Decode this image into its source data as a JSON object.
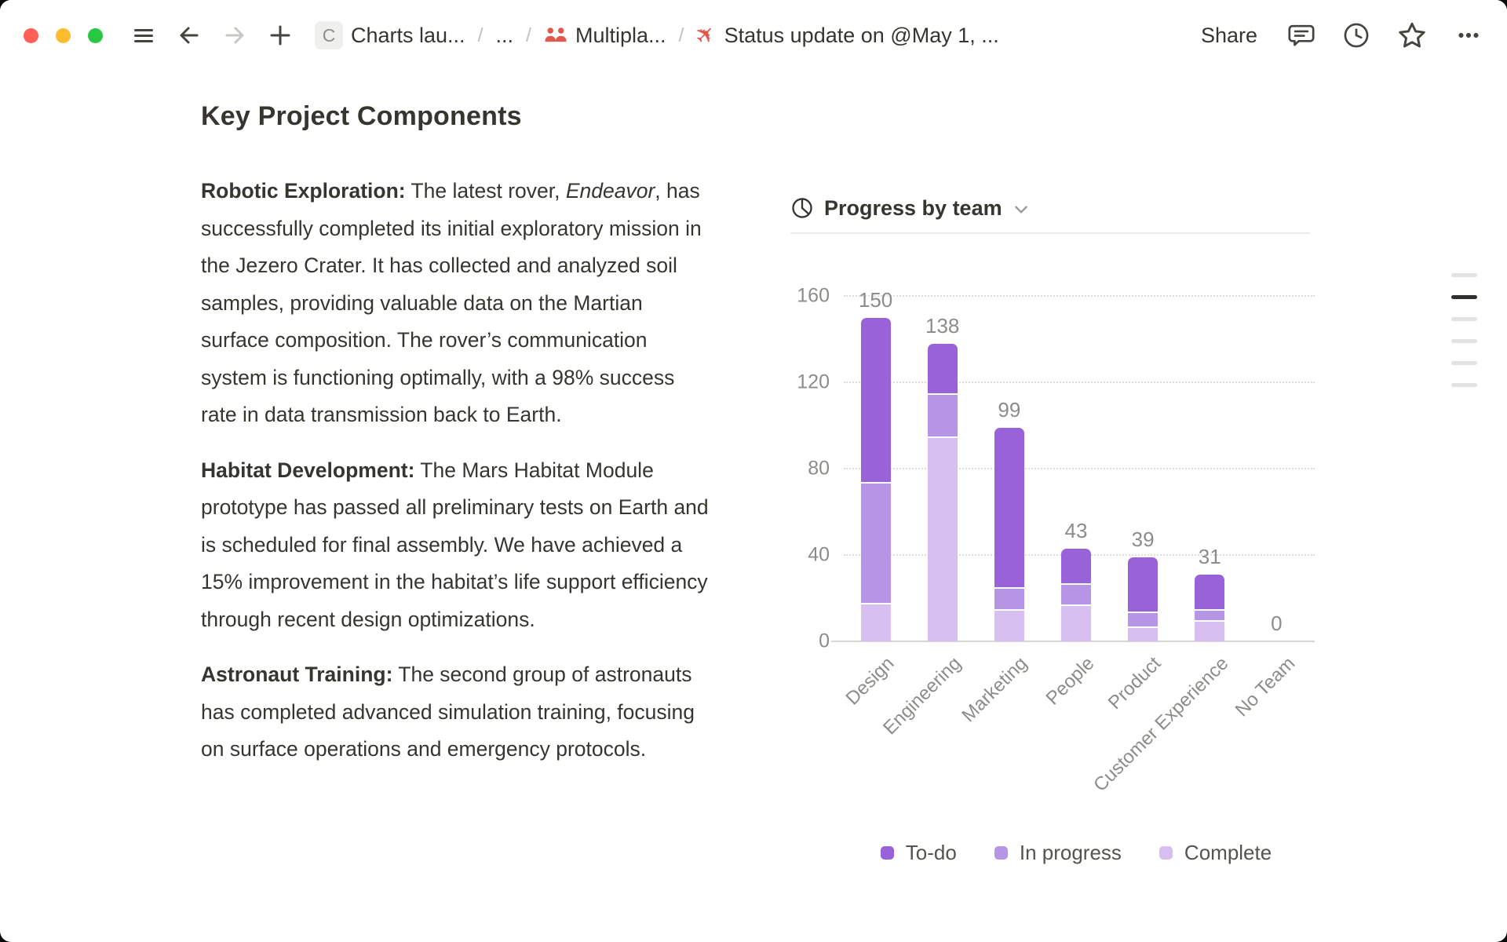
{
  "titlebar": {
    "breadcrumb": {
      "separator": "/",
      "page1_chip": "C",
      "page1_text": "Charts lau...",
      "collapsed_text": "...",
      "page2_text": "Multipla...",
      "page3_text": "Status update on @May 1, ..."
    },
    "share_label": "Share"
  },
  "document": {
    "title": "Key Project Components",
    "paragraphs": [
      [
        {
          "t": "Robotic Exploration:",
          "b": true
        },
        {
          "t": " The latest rover, "
        },
        {
          "t": "Endeavor",
          "i": true
        },
        {
          "t": ", has successfully completed its initial exploratory mission in the Jezero Crater. It has collected and analyzed soil samples, providing valuable data on the Martian surface composition. The rover’s communication system is functioning optimally, with a 98% success rate in data transmission back to Earth."
        }
      ],
      [
        {
          "t": "Habitat Development:",
          "b": true
        },
        {
          "t": " The Mars Habitat Module prototype has passed all preliminary tests on Earth and is scheduled for final assembly. We have achieved a 15% improvement in the habitat’s life support efficiency through recent design optimizations."
        }
      ],
      [
        {
          "t": "Astronaut Training:",
          "b": true
        },
        {
          "t": " The second group of astronauts has completed advanced simulation training, focusing on surface operations and emergency protocols."
        }
      ]
    ]
  },
  "chart_data": {
    "type": "bar",
    "stacked": true,
    "title": "Progress by team",
    "categories": [
      "Design",
      "Engineering",
      "Marketing",
      "People",
      "Product",
      "Customer Experience",
      "No Team"
    ],
    "series": [
      {
        "name": "To-do",
        "color": "#9a62d8",
        "values": [
          76,
          23,
          74,
          16,
          25,
          16,
          0
        ]
      },
      {
        "name": "In progress",
        "color": "#b795e6",
        "values": [
          56,
          20,
          10,
          10,
          7,
          5,
          0
        ]
      },
      {
        "name": "Complete",
        "color": "#d7bff2",
        "values": [
          18,
          95,
          15,
          17,
          7,
          10,
          0
        ]
      }
    ],
    "totals": [
      150,
      138,
      99,
      43,
      39,
      31,
      0
    ],
    "yticks": [
      0,
      40,
      80,
      120,
      160
    ],
    "ylim": [
      0,
      160
    ],
    "ylabel": "",
    "xlabel": "",
    "grid": "dotted-horizontal",
    "legend_position": "bottom"
  }
}
